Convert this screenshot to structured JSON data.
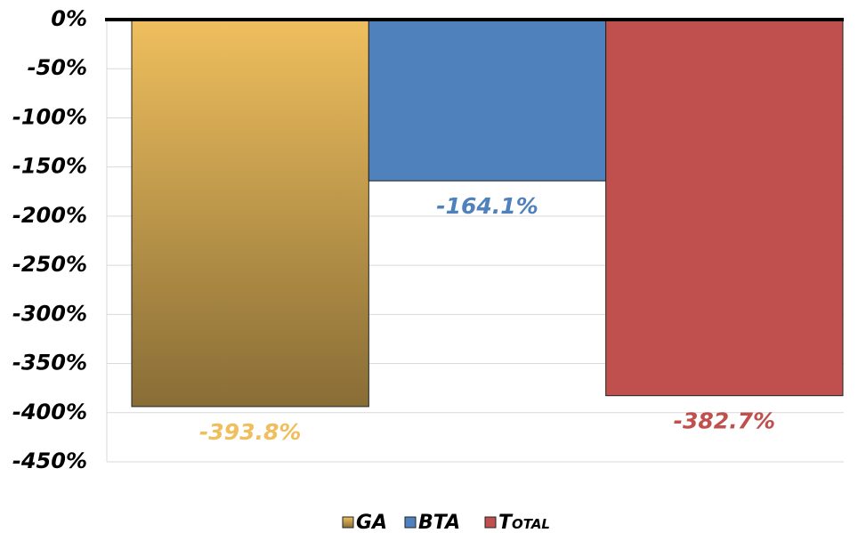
{
  "chart_data": {
    "type": "bar",
    "series": [
      {
        "name": "GA",
        "color": "#efbf5e",
        "values": [
          -393.8
        ],
        "value_labels": [
          "-393.8%"
        ]
      },
      {
        "name": "BTA",
        "color": "#4f81bd",
        "values": [
          -164.1
        ],
        "value_labels": [
          "-164.1%"
        ]
      },
      {
        "name": "Total",
        "color": "#c0504d",
        "values": [
          -382.7
        ],
        "value_labels": [
          "-382.7%"
        ]
      }
    ],
    "ylim": [
      -450,
      0
    ],
    "yticks": [
      {
        "value": 0,
        "label": "0%"
      },
      {
        "value": -50,
        "label": "-50%"
      },
      {
        "value": -100,
        "label": "-100%"
      },
      {
        "value": -150,
        "label": "-150%"
      },
      {
        "value": -200,
        "label": "-200%"
      },
      {
        "value": -250,
        "label": "-250%"
      },
      {
        "value": -300,
        "label": "-300%"
      },
      {
        "value": -350,
        "label": "-350%"
      },
      {
        "value": -400,
        "label": "-400%"
      },
      {
        "value": -450,
        "label": "-450%"
      }
    ],
    "grid": true
  }
}
